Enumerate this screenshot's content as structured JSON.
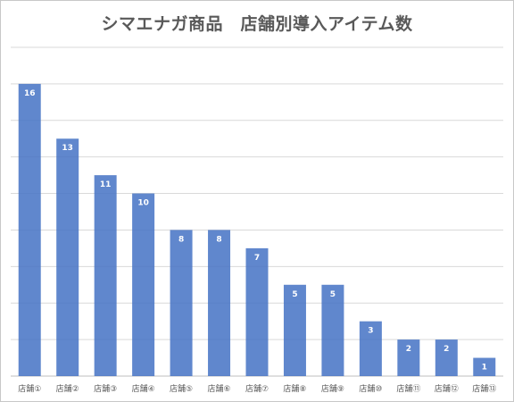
{
  "chart_data": {
    "type": "bar",
    "title": "シマエナガ商品　店舗別導入アイテム数",
    "categories": [
      "店舗①",
      "店舗②",
      "店舗③",
      "店舗④",
      "店舗⑤",
      "店舗⑥",
      "店舗⑦",
      "店舗⑧",
      "店舗⑨",
      "店舗⑩",
      "店舗⑪",
      "店舗⑫",
      "店舗⑬"
    ],
    "values": [
      16,
      13,
      11,
      10,
      8,
      8,
      7,
      5,
      5,
      3,
      2,
      2,
      1
    ],
    "ylim": [
      0,
      18
    ],
    "grid_step": 2,
    "grid": true,
    "legend": false,
    "bar_color": "#4472c4",
    "data_labels": true
  }
}
